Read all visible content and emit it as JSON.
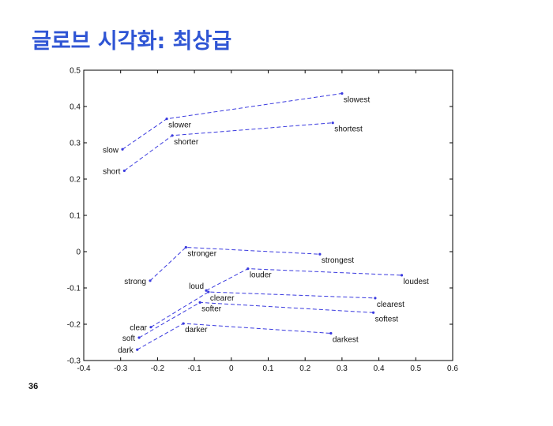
{
  "slide": {
    "title": "글로브 시각화: 최상급",
    "page_number": "36"
  },
  "chart_data": {
    "type": "scatter",
    "title": "",
    "xlabel": "",
    "ylabel": "",
    "xlim": [
      -0.4,
      0.6
    ],
    "ylim": [
      -0.3,
      0.5
    ],
    "x_ticks": [
      -0.4,
      -0.3,
      -0.2,
      -0.1,
      0,
      0.1,
      0.2,
      0.3,
      0.4,
      0.5,
      0.6
    ],
    "x_tick_labels": [
      "-0.4",
      "-0.3",
      "-0.2",
      "-0.1",
      "0",
      "0.1",
      "0.2",
      "0.3",
      "0.4",
      "0.5",
      "0.6"
    ],
    "y_ticks": [
      -0.3,
      -0.2,
      -0.1,
      0,
      0.1,
      0.2,
      0.3,
      0.4,
      0.5
    ],
    "y_tick_labels": [
      "-0.3",
      "-0.2",
      "-0.1",
      "0",
      "0.1",
      "0.2",
      "0.3",
      "0.4",
      "0.5"
    ],
    "grid": false,
    "line_style": "dashed",
    "line_color": "#3a3adf",
    "points": [
      {
        "word": "slow",
        "x": -0.295,
        "y": 0.282
      },
      {
        "word": "slower",
        "x": -0.175,
        "y": 0.366
      },
      {
        "word": "slowest",
        "x": 0.3,
        "y": 0.436
      },
      {
        "word": "short",
        "x": -0.29,
        "y": 0.223
      },
      {
        "word": "shorter",
        "x": -0.16,
        "y": 0.32
      },
      {
        "word": "shortest",
        "x": 0.275,
        "y": 0.355
      },
      {
        "word": "strong",
        "x": -0.22,
        "y": -0.08
      },
      {
        "word": "stronger",
        "x": -0.123,
        "y": 0.012
      },
      {
        "word": "strongest",
        "x": 0.24,
        "y": -0.007
      },
      {
        "word": "loud",
        "x": -0.068,
        "y": -0.107
      },
      {
        "word": "louder",
        "x": 0.045,
        "y": -0.047
      },
      {
        "word": "loudest",
        "x": 0.462,
        "y": -0.065
      },
      {
        "word": "clear",
        "x": -0.218,
        "y": -0.208
      },
      {
        "word": "clearer",
        "x": -0.062,
        "y": -0.111
      },
      {
        "word": "clearest",
        "x": 0.39,
        "y": -0.128
      },
      {
        "word": "soft",
        "x": -0.25,
        "y": -0.237
      },
      {
        "word": "softer",
        "x": -0.085,
        "y": -0.14
      },
      {
        "word": "softest",
        "x": 0.385,
        "y": -0.168
      },
      {
        "word": "dark",
        "x": -0.255,
        "y": -0.27
      },
      {
        "word": "darker",
        "x": -0.13,
        "y": -0.198
      },
      {
        "word": "darkest",
        "x": 0.27,
        "y": -0.225
      }
    ],
    "chains": [
      [
        "slow",
        "slower",
        "slowest"
      ],
      [
        "short",
        "shorter",
        "shortest"
      ],
      [
        "strong",
        "stronger",
        "strongest"
      ],
      [
        "loud",
        "louder",
        "loudest"
      ],
      [
        "clear",
        "clearer",
        "clearest"
      ],
      [
        "soft",
        "softer",
        "softest"
      ],
      [
        "dark",
        "darker",
        "darkest"
      ]
    ]
  }
}
